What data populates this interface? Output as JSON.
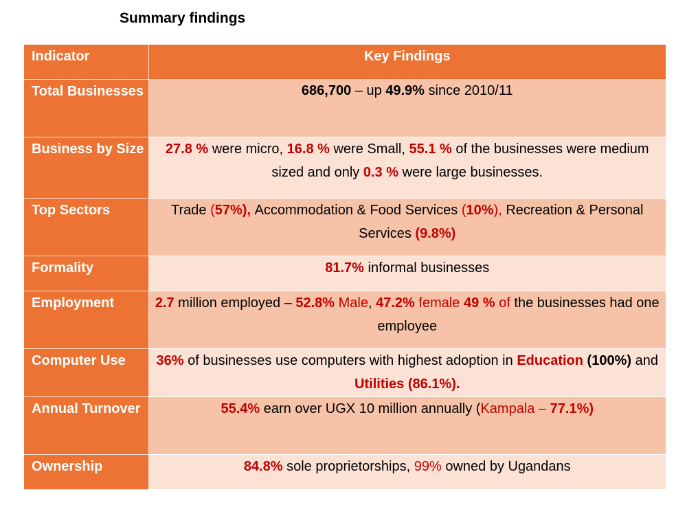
{
  "title": "Summary findings",
  "header": {
    "indicator": "Indicator",
    "findings": "Key Findings"
  },
  "colors": {
    "orange": "#ec7333",
    "peach_dark": "#f6c3a8",
    "peach_light": "#fbe2d5",
    "red": "#c00000"
  },
  "rows": [
    {
      "indicator": "Total Businesses",
      "segments": [
        [
          "686,700",
          "b"
        ],
        [
          " – up ",
          ""
        ],
        [
          "49.9%",
          "b"
        ],
        [
          " since 2010/11",
          ""
        ]
      ]
    },
    {
      "indicator": "Business by Size",
      "segments": [
        [
          "27.8 %",
          "rb"
        ],
        [
          " were micro, ",
          ""
        ],
        [
          "16.8 %",
          "rb"
        ],
        [
          " were Small, ",
          ""
        ],
        [
          "55.1 %",
          "rb"
        ],
        [
          " of the businesses were medium sized and only ",
          ""
        ],
        [
          "0.3 %",
          "rb"
        ],
        [
          " were large businesses.",
          ""
        ]
      ]
    },
    {
      "indicator": "Top Sectors",
      "segments": [
        [
          "Trade ",
          ""
        ],
        [
          "(",
          "r"
        ],
        [
          "57%), ",
          "rb"
        ],
        [
          "Accommodation & Food Services ",
          ""
        ],
        [
          "(",
          "r"
        ],
        [
          "10%",
          "rb"
        ],
        [
          "), ",
          "r"
        ],
        [
          "Recreation & Personal Services ",
          ""
        ],
        [
          "(9.8%)",
          "rb"
        ]
      ]
    },
    {
      "indicator": "Formality",
      "segments": [
        [
          "81.7%",
          "rb"
        ],
        [
          " informal businesses",
          ""
        ]
      ]
    },
    {
      "indicator": "Employment",
      "segments": [
        [
          "2.7",
          "rb"
        ],
        [
          " million employed – ",
          ""
        ],
        [
          "52.8%",
          "rb"
        ],
        [
          " Male",
          "r"
        ],
        [
          ", ",
          ""
        ],
        [
          "47.2%",
          "rb"
        ],
        [
          " female ",
          "r"
        ],
        [
          "49 %",
          "rb"
        ],
        [
          " of",
          "r"
        ],
        [
          " the businesses had one employee",
          ""
        ]
      ]
    },
    {
      "indicator": "Computer Use",
      "segments": [
        [
          "36%",
          "rb"
        ],
        [
          " of businesses use computers with highest adoption in ",
          ""
        ],
        [
          "Education",
          "rb"
        ],
        [
          " (100%)",
          "b"
        ],
        [
          " and ",
          ""
        ],
        [
          "Utilities (86.1%).",
          "rb"
        ]
      ]
    },
    {
      "indicator": "Annual Turnover",
      "segments": [
        [
          "55.4%",
          "rb"
        ],
        [
          " earn over UGX 10 million annually (",
          ""
        ],
        [
          "Kampala – ",
          "r"
        ],
        [
          "77.1%)",
          "rb"
        ]
      ]
    },
    {
      "indicator": "Ownership",
      "segments": [
        [
          "84.8%",
          "rb"
        ],
        [
          " sole proprietorships, ",
          ""
        ],
        [
          "99%",
          "r"
        ],
        [
          " owned by Ugandans",
          ""
        ]
      ]
    }
  ]
}
